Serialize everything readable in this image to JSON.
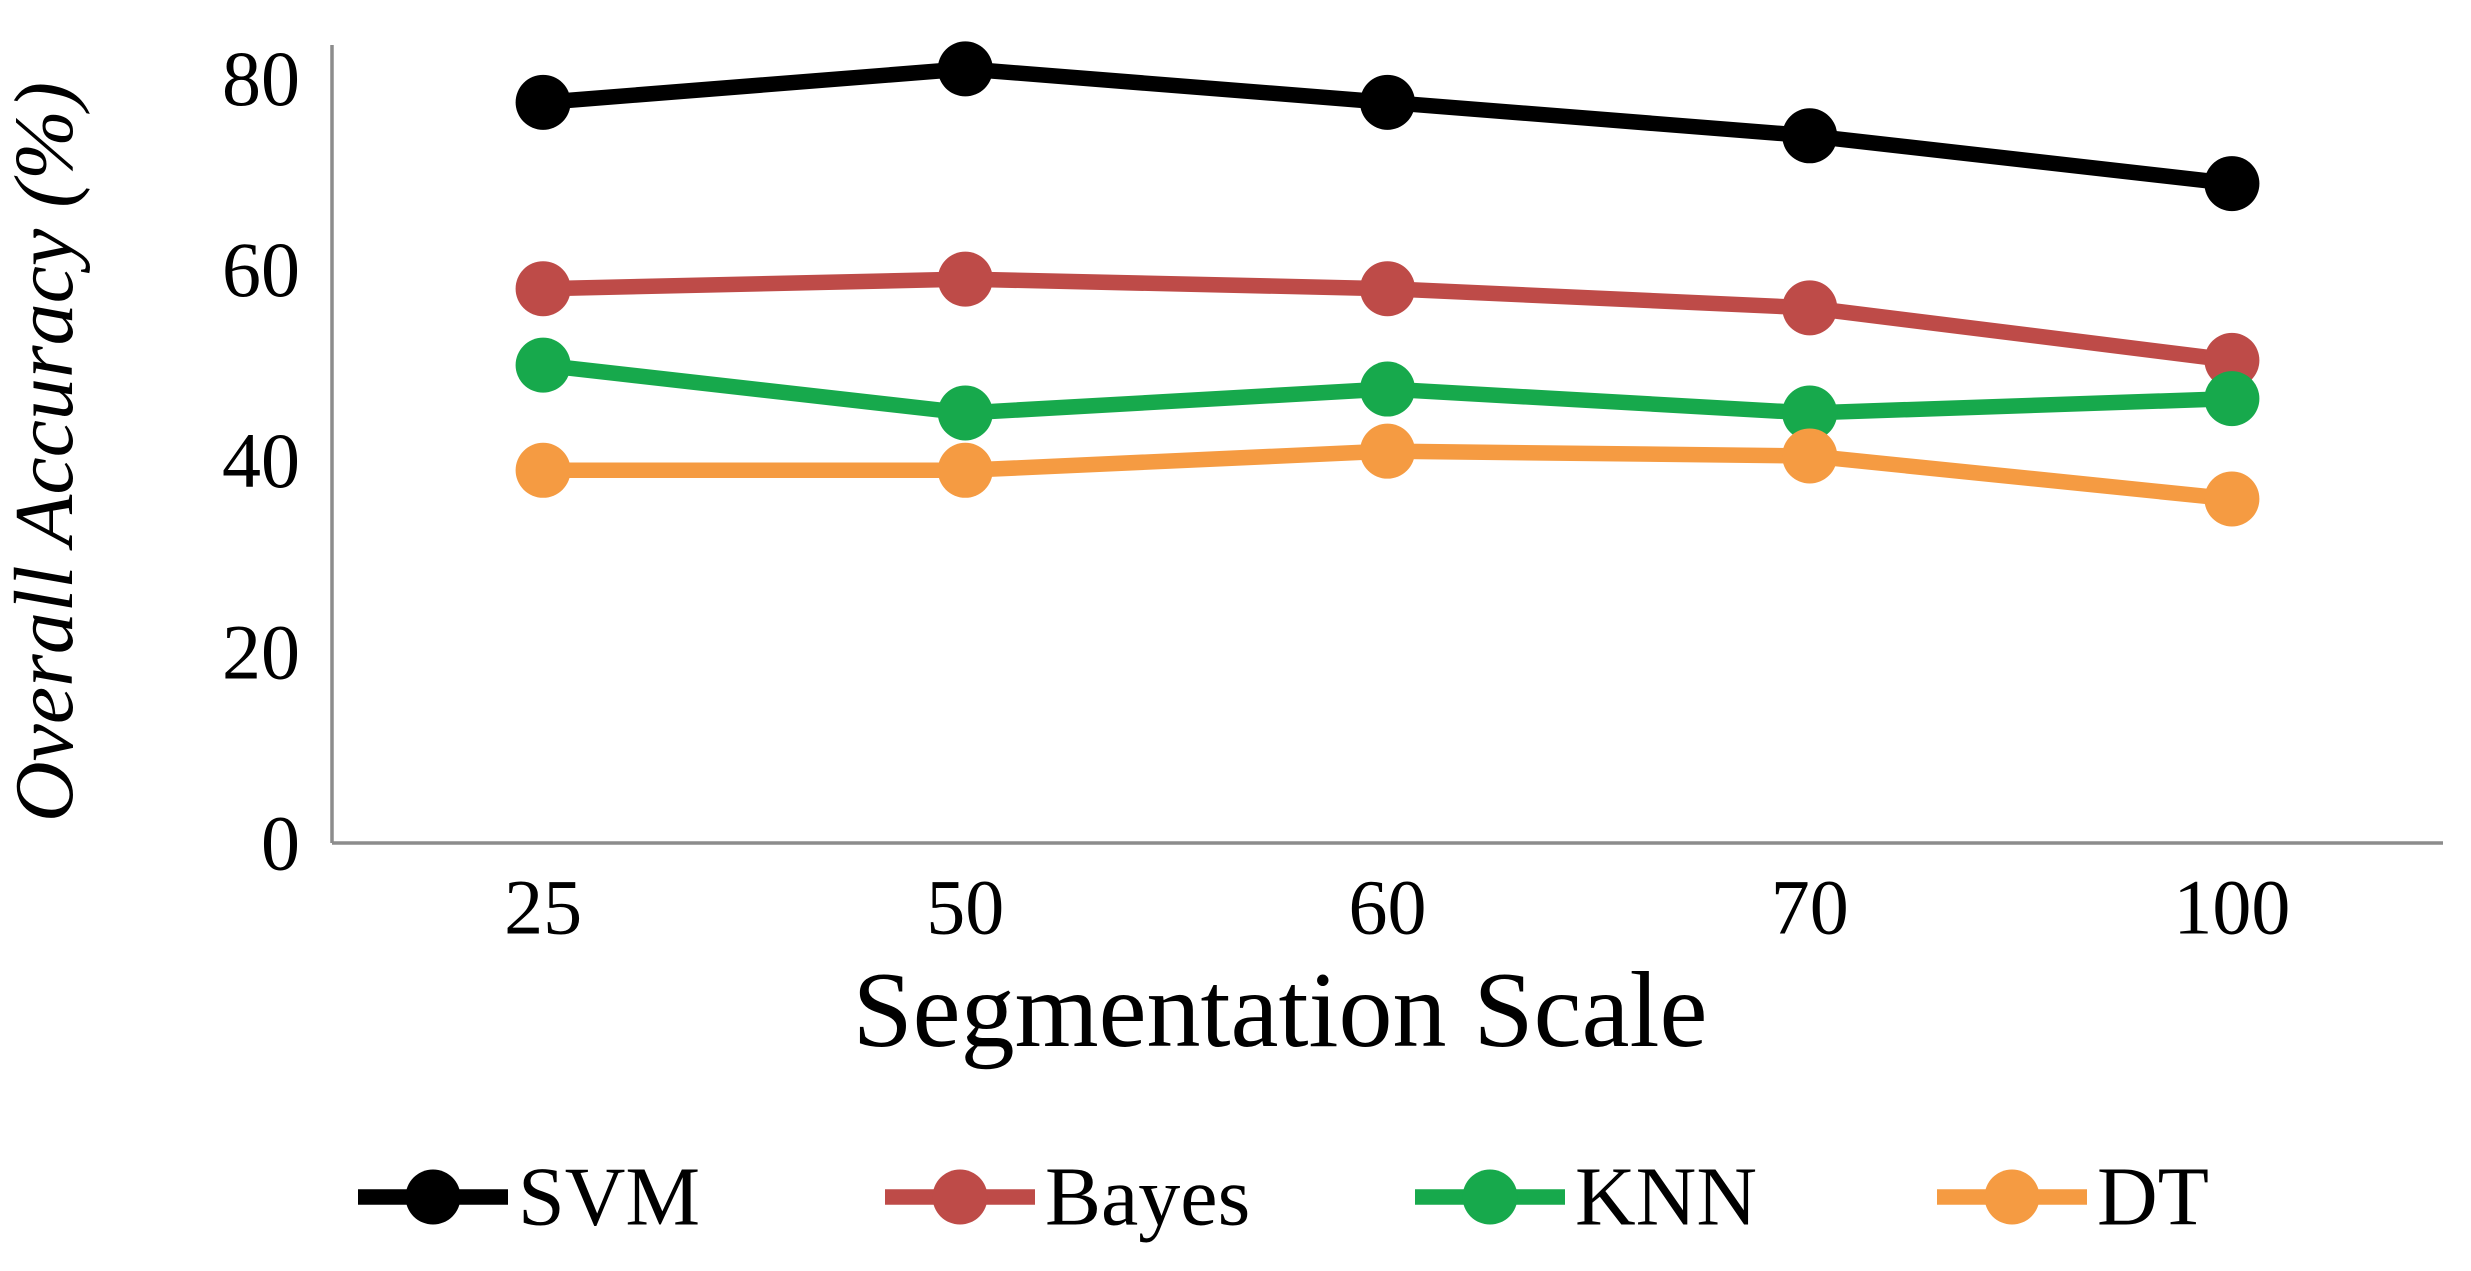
{
  "chart_data": {
    "type": "line",
    "title": "",
    "xlabel": "Segmentation Scale",
    "ylabel": "Overall Accuracy (%)",
    "categories": [
      25,
      50,
      60,
      70,
      100
    ],
    "x_tick_labels": [
      "25",
      "50",
      "60",
      "70",
      "100"
    ],
    "y_ticks": [
      0,
      20,
      40,
      60,
      80
    ],
    "y_tick_labels": [
      "0",
      "20",
      "40",
      "60",
      "80"
    ],
    "ylim": [
      0,
      83.5
    ],
    "grid": false,
    "legend_position": "bottom",
    "axis_color": "#8c8c8c",
    "text_color": "#000000",
    "series": [
      {
        "name": "SVM",
        "color": "#000000",
        "values": [
          77.5,
          81,
          77.5,
          74,
          69
        ]
      },
      {
        "name": "Bayes",
        "color": "#be4b48",
        "values": [
          58,
          59,
          58,
          56,
          50.5
        ]
      },
      {
        "name": "KNN",
        "color": "#17a94c",
        "values": [
          50,
          45,
          47.5,
          45,
          46.5
        ]
      },
      {
        "name": "DT",
        "color": "#f59b42",
        "values": [
          39,
          39,
          41,
          40.5,
          36
        ]
      }
    ]
  }
}
